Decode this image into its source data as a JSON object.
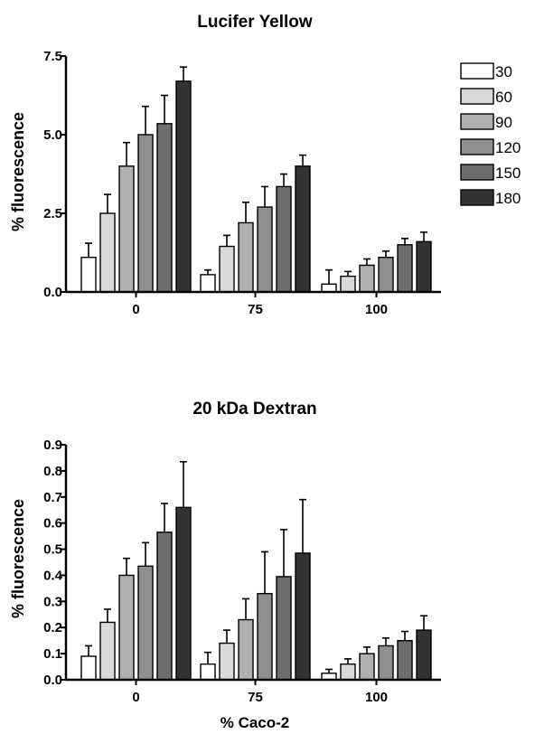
{
  "chart_data": [
    {
      "type": "bar",
      "title": "Lucifer Yellow",
      "ylabel": "% fluorescence",
      "xlabel": "",
      "categories": [
        "0",
        "75",
        "100"
      ],
      "ylim": [
        0,
        7.5
      ],
      "yticks": [
        "0.0",
        "2.5",
        "5.0",
        "7.5"
      ],
      "series": [
        {
          "name": "30",
          "color": "#ffffff",
          "values": [
            1.1,
            0.55,
            0.25
          ],
          "errors": [
            0.45,
            0.15,
            0.45
          ]
        },
        {
          "name": "60",
          "color": "#d9d9d9",
          "values": [
            2.5,
            1.45,
            0.5
          ],
          "errors": [
            0.6,
            0.35,
            0.15
          ]
        },
        {
          "name": "90",
          "color": "#b0b0b0",
          "values": [
            4.0,
            2.2,
            0.85
          ],
          "errors": [
            0.75,
            0.65,
            0.2
          ]
        },
        {
          "name": "120",
          "color": "#8f8f8f",
          "values": [
            5.0,
            2.7,
            1.1
          ],
          "errors": [
            0.9,
            0.65,
            0.2
          ]
        },
        {
          "name": "150",
          "color": "#6e6e6e",
          "values": [
            5.35,
            3.35,
            1.5
          ],
          "errors": [
            0.9,
            0.4,
            0.2
          ]
        },
        {
          "name": "180",
          "color": "#333333",
          "values": [
            6.7,
            4.0,
            1.6
          ],
          "errors": [
            0.45,
            0.35,
            0.3
          ]
        }
      ]
    },
    {
      "type": "bar",
      "title": "20 kDa Dextran",
      "ylabel": "% fluorescence",
      "xlabel": "% Caco-2",
      "categories": [
        "0",
        "75",
        "100"
      ],
      "ylim": [
        0,
        0.9
      ],
      "yticks": [
        "0.0",
        "0.1",
        "0.2",
        "0.3",
        "0.4",
        "0.5",
        "0.6",
        "0.7",
        "0.8",
        "0.9"
      ],
      "series": [
        {
          "name": "30",
          "color": "#ffffff",
          "values": [
            0.09,
            0.06,
            0.025
          ],
          "errors": [
            0.04,
            0.045,
            0.015
          ]
        },
        {
          "name": "60",
          "color": "#d9d9d9",
          "values": [
            0.22,
            0.14,
            0.06
          ],
          "errors": [
            0.05,
            0.05,
            0.02
          ]
        },
        {
          "name": "90",
          "color": "#b0b0b0",
          "values": [
            0.4,
            0.23,
            0.1
          ],
          "errors": [
            0.065,
            0.08,
            0.025
          ]
        },
        {
          "name": "120",
          "color": "#8f8f8f",
          "values": [
            0.435,
            0.33,
            0.13
          ],
          "errors": [
            0.09,
            0.16,
            0.03
          ]
        },
        {
          "name": "150",
          "color": "#6e6e6e",
          "values": [
            0.565,
            0.395,
            0.15
          ],
          "errors": [
            0.11,
            0.18,
            0.035
          ]
        },
        {
          "name": "180",
          "color": "#333333",
          "values": [
            0.66,
            0.485,
            0.19
          ],
          "errors": [
            0.175,
            0.205,
            0.055
          ]
        }
      ]
    }
  ]
}
